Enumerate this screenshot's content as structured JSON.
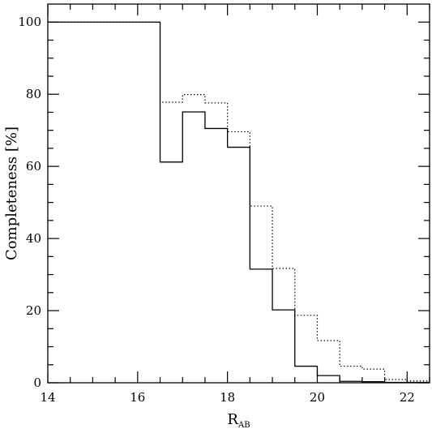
{
  "chart_data": {
    "type": "line",
    "style": "step-histogram",
    "xlabel": "R",
    "xlabel_subscript": "AB",
    "ylabel": "Completeness [%]",
    "xlim": [
      14,
      22.5
    ],
    "ylim": [
      0,
      105
    ],
    "x_ticks": [
      14,
      16,
      18,
      20,
      22
    ],
    "x_tick_labels": [
      "14",
      "16",
      "18",
      "20",
      "22"
    ],
    "x_minor_step": 0.5,
    "y_ticks": [
      0,
      20,
      40,
      60,
      80,
      100
    ],
    "y_tick_labels": [
      "0",
      "20",
      "40",
      "60",
      "80",
      "100"
    ],
    "y_minor_step": 5,
    "grid": false,
    "bin_edges": [
      14,
      16.5,
      17,
      17.5,
      18,
      18.5,
      19,
      19.5,
      20,
      20.5,
      21,
      21.5,
      22,
      22.5
    ],
    "series": [
      {
        "style": "solid",
        "values": [
          100,
          61.2,
          75.1,
          70.5,
          65.3,
          31.5,
          20.2,
          4.6,
          2.0,
          0.4,
          0.3,
          0.1,
          0.1
        ]
      },
      {
        "style": "dotted",
        "values": [
          100,
          77.8,
          79.9,
          77.6,
          69.6,
          49.0,
          31.7,
          18.7,
          11.7,
          4.6,
          3.8,
          0.9,
          0.5
        ]
      }
    ]
  }
}
